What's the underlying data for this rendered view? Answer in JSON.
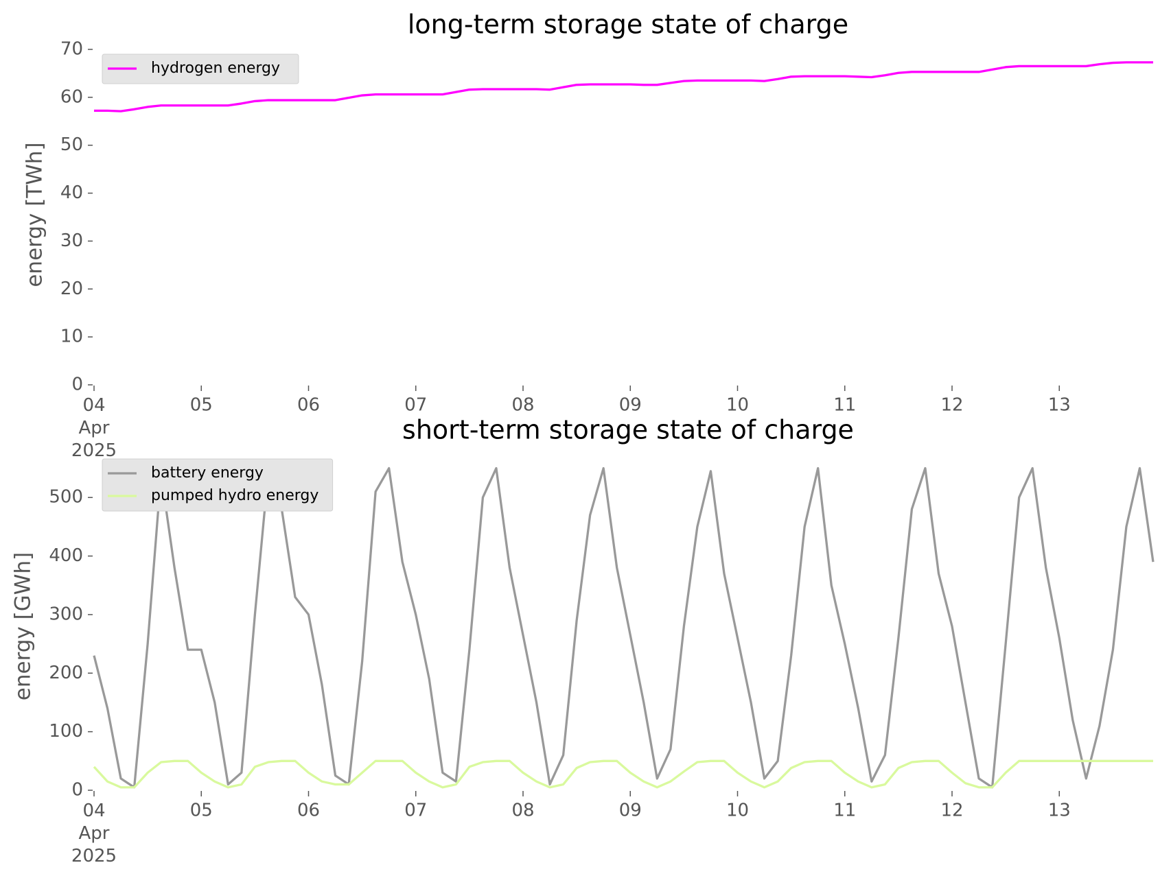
{
  "chart_data": [
    {
      "type": "line",
      "title": "long-term storage state of charge",
      "ylabel": "energy [TWh]",
      "x": [
        "2025-04-04T00:00",
        "2025-04-04T03:00",
        "2025-04-04T06:00",
        "2025-04-04T09:00",
        "2025-04-04T12:00",
        "2025-04-04T15:00",
        "2025-04-04T18:00",
        "2025-04-04T21:00",
        "2025-04-05T00:00",
        "2025-04-05T03:00",
        "2025-04-05T06:00",
        "2025-04-05T09:00",
        "2025-04-05T12:00",
        "2025-04-05T15:00",
        "2025-04-05T18:00",
        "2025-04-05T21:00",
        "2025-04-06T00:00",
        "2025-04-06T03:00",
        "2025-04-06T06:00",
        "2025-04-06T09:00",
        "2025-04-06T12:00",
        "2025-04-06T15:00",
        "2025-04-06T18:00",
        "2025-04-06T21:00",
        "2025-04-07T00:00",
        "2025-04-07T03:00",
        "2025-04-07T06:00",
        "2025-04-07T09:00",
        "2025-04-07T12:00",
        "2025-04-07T15:00",
        "2025-04-07T18:00",
        "2025-04-07T21:00",
        "2025-04-08T00:00",
        "2025-04-08T03:00",
        "2025-04-08T06:00",
        "2025-04-08T09:00",
        "2025-04-08T12:00",
        "2025-04-08T15:00",
        "2025-04-08T18:00",
        "2025-04-08T21:00",
        "2025-04-09T00:00",
        "2025-04-09T03:00",
        "2025-04-09T06:00",
        "2025-04-09T09:00",
        "2025-04-09T12:00",
        "2025-04-09T15:00",
        "2025-04-09T18:00",
        "2025-04-09T21:00",
        "2025-04-10T00:00",
        "2025-04-10T03:00",
        "2025-04-10T06:00",
        "2025-04-10T09:00",
        "2025-04-10T12:00",
        "2025-04-10T15:00",
        "2025-04-10T18:00",
        "2025-04-10T21:00",
        "2025-04-11T00:00",
        "2025-04-11T03:00",
        "2025-04-11T06:00",
        "2025-04-11T09:00",
        "2025-04-11T12:00",
        "2025-04-11T15:00",
        "2025-04-11T18:00",
        "2025-04-11T21:00",
        "2025-04-12T00:00",
        "2025-04-12T03:00",
        "2025-04-12T06:00",
        "2025-04-12T09:00",
        "2025-04-12T12:00",
        "2025-04-12T15:00",
        "2025-04-12T18:00",
        "2025-04-12T21:00",
        "2025-04-13T00:00",
        "2025-04-13T03:00",
        "2025-04-13T06:00",
        "2025-04-13T09:00",
        "2025-04-13T12:00",
        "2025-04-13T15:00",
        "2025-04-13T18:00",
        "2025-04-13T21:00"
      ],
      "xlim": [
        "2025-04-04T00:00",
        "2025-04-13T23:00"
      ],
      "xticks": [
        {
          "value": "2025-04-04T00:00",
          "label": [
            "04",
            "Apr",
            "2025"
          ]
        },
        {
          "value": "2025-04-05T00:00",
          "label": "05"
        },
        {
          "value": "2025-04-06T00:00",
          "label": "06"
        },
        {
          "value": "2025-04-07T00:00",
          "label": "07"
        },
        {
          "value": "2025-04-08T00:00",
          "label": "08"
        },
        {
          "value": "2025-04-09T00:00",
          "label": "09"
        },
        {
          "value": "2025-04-10T00:00",
          "label": "10"
        },
        {
          "value": "2025-04-11T00:00",
          "label": "11"
        },
        {
          "value": "2025-04-12T00:00",
          "label": "12"
        },
        {
          "value": "2025-04-13T00:00",
          "label": "13"
        }
      ],
      "ylim": [
        0,
        71
      ],
      "yticks": [
        0,
        10,
        20,
        30,
        40,
        50,
        60,
        70
      ],
      "legend": "upper left",
      "series": [
        {
          "name": "hydrogen energy",
          "color": "#ff00ff",
          "values": [
            57.2,
            57.2,
            57.1,
            57.5,
            58.0,
            58.3,
            58.3,
            58.3,
            58.3,
            58.3,
            58.3,
            58.7,
            59.2,
            59.4,
            59.4,
            59.4,
            59.4,
            59.4,
            59.4,
            59.9,
            60.4,
            60.6,
            60.6,
            60.6,
            60.6,
            60.6,
            60.6,
            61.1,
            61.6,
            61.7,
            61.7,
            61.7,
            61.7,
            61.7,
            61.6,
            62.1,
            62.6,
            62.7,
            62.7,
            62.7,
            62.7,
            62.6,
            62.6,
            63.0,
            63.4,
            63.5,
            63.5,
            63.5,
            63.5,
            63.5,
            63.4,
            63.8,
            64.3,
            64.4,
            64.4,
            64.4,
            64.4,
            64.3,
            64.2,
            64.6,
            65.1,
            65.3,
            65.3,
            65.3,
            65.3,
            65.3,
            65.3,
            65.8,
            66.3,
            66.5,
            66.5,
            66.5,
            66.5,
            66.5,
            66.5,
            66.9,
            67.2,
            67.3,
            67.3,
            67.3
          ]
        }
      ]
    },
    {
      "type": "line",
      "title": "short-term storage state of charge",
      "ylabel": "energy [GWh]",
      "x": [
        "2025-04-04T00:00",
        "2025-04-04T03:00",
        "2025-04-04T06:00",
        "2025-04-04T09:00",
        "2025-04-04T12:00",
        "2025-04-04T15:00",
        "2025-04-04T18:00",
        "2025-04-04T21:00",
        "2025-04-05T00:00",
        "2025-04-05T03:00",
        "2025-04-05T06:00",
        "2025-04-05T09:00",
        "2025-04-05T12:00",
        "2025-04-05T15:00",
        "2025-04-05T18:00",
        "2025-04-05T21:00",
        "2025-04-06T00:00",
        "2025-04-06T03:00",
        "2025-04-06T06:00",
        "2025-04-06T09:00",
        "2025-04-06T12:00",
        "2025-04-06T15:00",
        "2025-04-06T18:00",
        "2025-04-06T21:00",
        "2025-04-07T00:00",
        "2025-04-07T03:00",
        "2025-04-07T06:00",
        "2025-04-07T09:00",
        "2025-04-07T12:00",
        "2025-04-07T15:00",
        "2025-04-07T18:00",
        "2025-04-07T21:00",
        "2025-04-08T00:00",
        "2025-04-08T03:00",
        "2025-04-08T06:00",
        "2025-04-08T09:00",
        "2025-04-08T12:00",
        "2025-04-08T15:00",
        "2025-04-08T18:00",
        "2025-04-08T21:00",
        "2025-04-09T00:00",
        "2025-04-09T03:00",
        "2025-04-09T06:00",
        "2025-04-09T09:00",
        "2025-04-09T12:00",
        "2025-04-09T15:00",
        "2025-04-09T18:00",
        "2025-04-09T21:00",
        "2025-04-10T00:00",
        "2025-04-10T03:00",
        "2025-04-10T06:00",
        "2025-04-10T09:00",
        "2025-04-10T12:00",
        "2025-04-10T15:00",
        "2025-04-10T18:00",
        "2025-04-10T21:00",
        "2025-04-11T00:00",
        "2025-04-11T03:00",
        "2025-04-11T06:00",
        "2025-04-11T09:00",
        "2025-04-11T12:00",
        "2025-04-11T15:00",
        "2025-04-11T18:00",
        "2025-04-11T21:00",
        "2025-04-12T00:00",
        "2025-04-12T03:00",
        "2025-04-12T06:00",
        "2025-04-12T09:00",
        "2025-04-12T12:00",
        "2025-04-12T15:00",
        "2025-04-12T18:00",
        "2025-04-12T21:00",
        "2025-04-13T00:00",
        "2025-04-13T03:00",
        "2025-04-13T06:00",
        "2025-04-13T09:00",
        "2025-04-13T12:00",
        "2025-04-13T15:00",
        "2025-04-13T18:00",
        "2025-04-13T21:00"
      ],
      "xlim": [
        "2025-04-04T00:00",
        "2025-04-13T23:00"
      ],
      "xticks": [
        {
          "value": "2025-04-04T00:00",
          "label": [
            "04",
            "Apr",
            "2025"
          ]
        },
        {
          "value": "2025-04-05T00:00",
          "label": "05"
        },
        {
          "value": "2025-04-06T00:00",
          "label": "06"
        },
        {
          "value": "2025-04-07T00:00",
          "label": "07"
        },
        {
          "value": "2025-04-08T00:00",
          "label": "08"
        },
        {
          "value": "2025-04-09T00:00",
          "label": "09"
        },
        {
          "value": "2025-04-10T00:00",
          "label": "10"
        },
        {
          "value": "2025-04-11T00:00",
          "label": "11"
        },
        {
          "value": "2025-04-12T00:00",
          "label": "12"
        },
        {
          "value": "2025-04-13T00:00",
          "label": "13"
        }
      ],
      "ylim": [
        0,
        560
      ],
      "yticks": [
        0,
        100,
        200,
        300,
        400,
        500
      ],
      "legend": "upper left",
      "series": [
        {
          "name": "battery energy",
          "color": "#999999",
          "values": [
            230,
            140,
            20,
            5,
            250,
            540,
            380,
            240,
            240,
            150,
            10,
            30,
            300,
            545,
            480,
            330,
            300,
            180,
            25,
            10,
            220,
            510,
            550,
            390,
            300,
            190,
            30,
            15,
            240,
            500,
            550,
            380,
            265,
            150,
            10,
            60,
            290,
            470,
            550,
            380,
            265,
            150,
            20,
            70,
            280,
            450,
            545,
            370,
            260,
            150,
            20,
            50,
            230,
            450,
            550,
            350,
            250,
            140,
            15,
            60,
            260,
            480,
            550,
            370,
            280,
            150,
            20,
            5,
            250,
            500,
            550,
            380,
            260,
            120,
            20,
            110,
            240,
            450,
            550,
            390
          ]
        },
        {
          "name": "pumped hydro energy",
          "color": "#d9f99d",
          "values": [
            40,
            15,
            5,
            5,
            30,
            48,
            50,
            50,
            30,
            15,
            5,
            10,
            40,
            48,
            50,
            50,
            30,
            15,
            10,
            10,
            30,
            50,
            50,
            50,
            30,
            15,
            5,
            10,
            40,
            48,
            50,
            50,
            30,
            15,
            5,
            10,
            38,
            48,
            50,
            50,
            30,
            15,
            5,
            15,
            32,
            48,
            50,
            50,
            30,
            15,
            5,
            15,
            38,
            48,
            50,
            50,
            30,
            15,
            5,
            10,
            38,
            48,
            50,
            50,
            30,
            12,
            5,
            5,
            30,
            50,
            50,
            50,
            50,
            50,
            50,
            50,
            50,
            50,
            50,
            50
          ]
        }
      ]
    }
  ]
}
